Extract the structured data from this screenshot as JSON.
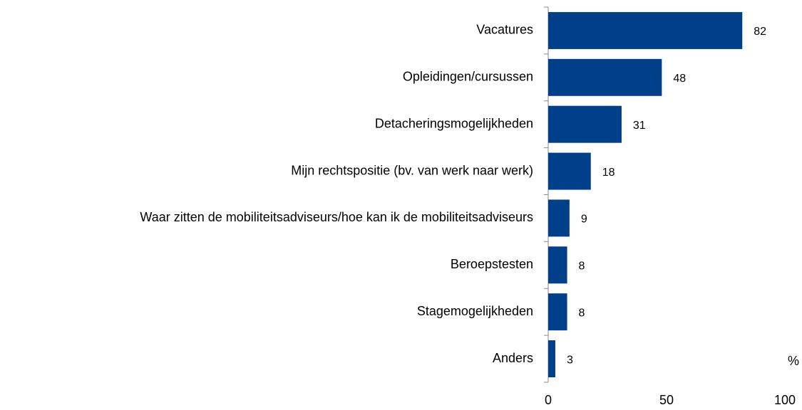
{
  "chart_data": {
    "type": "hbar",
    "categories": [
      "Vacatures",
      "Opleidingen/cursussen",
      "Detacheringsmogelijkheden",
      "Mijn rechtspositie (bv. van werk naar werk)",
      "Waar zitten de mobiliteitsadviseurs/hoe kan ik de mobiliteitsadviseurs",
      "Beroepstesten",
      "Stagemogelijkheden",
      "Anders"
    ],
    "values": [
      82,
      48,
      31,
      18,
      9,
      8,
      8,
      3
    ],
    "color": "#00408a",
    "x_label": "%",
    "xlim": [
      0,
      100
    ],
    "xticks": [
      0,
      50,
      100
    ],
    "grid": false
  }
}
